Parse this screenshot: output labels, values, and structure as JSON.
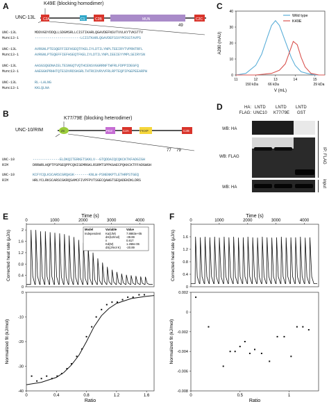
{
  "panels": {
    "A": {
      "letter": "A",
      "protein_label": "UNC-13L",
      "mutation_label": "K49E (blocking homodimer)",
      "domains": [
        "C2A",
        "C1",
        "C2B",
        "MUN",
        "C2C"
      ],
      "position_marker": "49",
      "alignment": [
        {
          "name1": "UNC-13L",
          "seq1": "MDDVGDYDDQLLSDGMSRLLCISTIKARLQGAVDEFNSVTVVLKYTVKSTTV",
          "name2": "Munc13-1",
          "seq2": "----------------------LCISTKARLQGAVDEFSSVYMIGSTAVPS"
        },
        {
          "name1": "UNC-13L",
          "seq1": "AVRGNLPTESQEFFIEFHSEQTFKELIYLDTILYNPLTEEIRYTVPRNTRFL",
          "name2": "Munc13-1",
          "seq2": "AVRGNLPTEQEFFIEFHSEQTFKELIYLDTILYNPLIEEIEYYMPLSEIRYSN"
        },
        {
          "name1": "UNC-13L",
          "seq1": "AASGSQGDNAIELTESNGQTVQTHCENSVGGRRNFTWFRLFDPPIDEGFQ",
          "name2": "Munc13-1",
          "seq2": "AAEGGKPRHHTQTESDVRDSKGRLTHTRCDVRVVFRLRPTEQPIPGEPEEARPW"
        },
        {
          "name1": "UNC-13L",
          "seq1": "RL-LALNG",
          "name2": "Munc13-1",
          "seq2": "KKLQLNA"
        }
      ]
    },
    "B": {
      "letter": "B",
      "protein_label": "UNC-10/RIM",
      "mutation_label": "K77/79E (blocking heterodimer)",
      "domains": [
        "Zn",
        "PDZ",
        "C2A",
        "FKXP",
        "C2B"
      ],
      "position_marker_1": "77",
      "position_marker_2": "79",
      "alignment": [
        {
          "name1": "UNC-10",
          "seq1": "-------------ELDKQITERKETSKKLV--GTQDDAIQCQKCKTKFADGIGH",
          "name2": "RIM",
          "seq2": "DRRWRLHQPTPSPGEQPPCQNISEMRGKLRSRMTSPPKGAECPQKKCKTFFADGWGH"
        },
        {
          "name1": "UNC-10",
          "seq1": "KCFYCQLKSCARSCGRQASK-------KNLW-PSNENKPTLETHRPSTGEQ",
          "name2": "RIM",
          "seq2": "HRLYCLRKSCARSCGKRQSAMCFIVPFPVTSGECQAWGTSEQADEKDKLDRS"
        }
      ]
    },
    "C": {
      "letter": "C",
      "ylabel": "A280 (mAU)",
      "xlabel": "V (mL)",
      "mw_labels": [
        "150 kDa",
        "66 kDa",
        "29 kDa"
      ],
      "legend": [
        "Wild type",
        "K49E"
      ]
    },
    "D": {
      "letter": "D",
      "ha_label": "HA:",
      "flag_label": "FLAG:",
      "lanes": [
        {
          "ha": "LNTD",
          "flag": "UNC10"
        },
        {
          "ha": "LNTD",
          "flag": "K77/79E"
        },
        {
          "ha": "LNTD",
          "flag": "GST"
        }
      ],
      "row_labels": [
        "WB: HA",
        "WB: FLAG",
        "WB: HA"
      ],
      "side_labels": [
        "IP: FLAG",
        "input"
      ]
    },
    "E": {
      "letter": "E",
      "top_xlabel": "Time (s)",
      "top_ylabel": "Corrected heat rate (μJ/s)",
      "bottom_ylabel": "Normalized fit (kJ/mol)",
      "bottom_xlabel": "Ratio",
      "fit_table": {
        "headers": [
          "Model",
          "Variable",
          "Value"
        ],
        "rows": [
          [
            "Independent",
            "Ka(1/M)",
            "7.8883e+05"
          ],
          [
            "",
            "dH(kJ/mol)",
            "-39.89"
          ],
          [
            "",
            "n",
            "0.817"
          ],
          [
            "",
            "Kd(M)",
            "1.268e-06"
          ],
          [
            "",
            "dS(J/mol K)",
            "-20.89"
          ]
        ]
      }
    },
    "F": {
      "letter": "F",
      "top_xlabel": "Time (s)",
      "top_ylabel": "Corrected heat rate (μJ/s)",
      "bottom_ylabel": "Normalized fit (kJ/mol)",
      "bottom_xlabel": "Ratio"
    }
  },
  "chart_data": [
    {
      "panel": "C",
      "type": "line",
      "xlabel": "V (mL)",
      "ylabel": "A280 (mAU)",
      "xlim": [
        11,
        15.5
      ],
      "ylim": [
        0,
        40
      ],
      "xticks": [
        11,
        12,
        13,
        14,
        15
      ],
      "yticks": [
        0,
        10,
        20,
        30,
        40
      ],
      "series": [
        {
          "name": "Wild type",
          "color": "#5aaed8",
          "x": [
            11.0,
            11.5,
            12.0,
            12.3,
            12.6,
            12.8,
            13.0,
            13.2,
            13.5,
            13.8,
            14.0,
            14.3,
            14.6,
            15.0,
            15.5
          ],
          "y": [
            0,
            1,
            6,
            13,
            24,
            31,
            34,
            31,
            21,
            11,
            6,
            2,
            1,
            0,
            0
          ]
        },
        {
          "name": "K49E",
          "color": "#d9534f",
          "x": [
            11.0,
            12.0,
            12.8,
            13.2,
            13.5,
            13.7,
            13.9,
            14.1,
            14.3,
            14.5,
            14.8,
            15.2,
            15.5
          ],
          "y": [
            0,
            0,
            1,
            3,
            7,
            14,
            21,
            19,
            11,
            5,
            1,
            0,
            0
          ]
        }
      ],
      "mw_markers": [
        {
          "label": "150 kDa",
          "x": 11.8
        },
        {
          "label": "66 kDa",
          "x": 12.9
        },
        {
          "label": "29 kDa",
          "x": 15.2
        }
      ]
    },
    {
      "panel": "E-top",
      "type": "line",
      "xlabel": "Time (s)",
      "ylabel": "Corrected heat rate (μJ/s)",
      "xlim": [
        0,
        4500
      ],
      "ylim": [
        0,
        2.2
      ],
      "xticks": [
        0,
        1000,
        2000,
        3000,
        4000
      ],
      "yticks": [
        0,
        0.4,
        0.8,
        1.2,
        1.6,
        2.0
      ],
      "injection_peaks": [
        2.0,
        2.0,
        1.95,
        1.95,
        1.92,
        1.9,
        1.88,
        1.85,
        1.8,
        1.75,
        1.65,
        1.55,
        1.4,
        1.2,
        1.0,
        0.85,
        0.7,
        0.6,
        0.52,
        0.46,
        0.42,
        0.4,
        0.38,
        0.36,
        0.35
      ],
      "baseline": 0.08
    },
    {
      "panel": "E-bottom",
      "type": "scatter",
      "xlabel": "Ratio",
      "ylabel": "Normalized fit (kJ/mol)",
      "xlim": [
        0,
        1.7
      ],
      "ylim": [
        -40,
        0
      ],
      "xticks": [
        0,
        0.4,
        0.8,
        1.2,
        1.6
      ],
      "yticks": [
        -40,
        -30,
        -20,
        -10,
        0
      ],
      "points": [
        {
          "x": 0.07,
          "y": -34
        },
        {
          "x": 0.14,
          "y": -36
        },
        {
          "x": 0.2,
          "y": -35
        },
        {
          "x": 0.27,
          "y": -34
        },
        {
          "x": 0.34,
          "y": -35
        },
        {
          "x": 0.41,
          "y": -34
        },
        {
          "x": 0.47,
          "y": -33
        },
        {
          "x": 0.54,
          "y": -31
        },
        {
          "x": 0.6,
          "y": -29
        },
        {
          "x": 0.67,
          "y": -26
        },
        {
          "x": 0.74,
          "y": -23
        },
        {
          "x": 0.8,
          "y": -18
        },
        {
          "x": 0.87,
          "y": -14
        },
        {
          "x": 0.93,
          "y": -10
        },
        {
          "x": 1.0,
          "y": -7
        },
        {
          "x": 1.07,
          "y": -5
        },
        {
          "x": 1.14,
          "y": -4
        },
        {
          "x": 1.21,
          "y": -4
        },
        {
          "x": 1.28,
          "y": -3
        },
        {
          "x": 1.35,
          "y": -2
        },
        {
          "x": 1.42,
          "y": -2
        },
        {
          "x": 1.5,
          "y": -1
        },
        {
          "x": 1.57,
          "y": -1
        }
      ],
      "fit": {
        "x": [
          0.0,
          0.2,
          0.4,
          0.5,
          0.6,
          0.7,
          0.8,
          0.9,
          1.0,
          1.1,
          1.2,
          1.4,
          1.6,
          1.7
        ],
        "y": [
          -37.5,
          -36.5,
          -34.5,
          -32.5,
          -29.5,
          -25.5,
          -20,
          -14,
          -9.5,
          -6.5,
          -4.5,
          -2.5,
          -1.6,
          -1.3
        ]
      }
    },
    {
      "panel": "F-top",
      "type": "line",
      "xlabel": "Time (s)",
      "ylabel": "Corrected heat rate (μJ/s)",
      "xlim": [
        0,
        4500
      ],
      "ylim": [
        0,
        2.0
      ],
      "xticks": [
        0,
        1000,
        2000,
        3000,
        4000
      ],
      "yticks": [
        0,
        0.4,
        0.8,
        1.2,
        1.6
      ],
      "injection_peaks": [
        1.6,
        1.58,
        1.6,
        1.58,
        1.6,
        1.57,
        1.6,
        1.58,
        1.6,
        1.57,
        1.58,
        1.6,
        1.58,
        1.57,
        1.6,
        1.58,
        1.57,
        1.58,
        1.6,
        1.57,
        1.58,
        1.58,
        1.6,
        1.57,
        1.58
      ],
      "baseline": 0.1
    },
    {
      "panel": "F-bottom",
      "type": "scatter",
      "xlabel": "Ratio",
      "ylabel": "Normalized fit (kJ/mol)",
      "xlim": [
        0,
        1.3
      ],
      "ylim": [
        -0.008,
        0.002
      ],
      "xticks": [
        0,
        0.5,
        1.0
      ],
      "yticks": [
        -0.008,
        -0.006,
        -0.004,
        -0.002,
        0,
        0.002
      ],
      "points": [
        {
          "x": 0.05,
          "y": 0.0015
        },
        {
          "x": 0.18,
          "y": -0.0015
        },
        {
          "x": 0.33,
          "y": -0.0055
        },
        {
          "x": 0.4,
          "y": -0.004
        },
        {
          "x": 0.45,
          "y": -0.004
        },
        {
          "x": 0.5,
          "y": -0.0035
        },
        {
          "x": 0.55,
          "y": -0.003
        },
        {
          "x": 0.6,
          "y": -0.0042
        },
        {
          "x": 0.65,
          "y": -0.0038
        },
        {
          "x": 0.72,
          "y": -0.0042
        },
        {
          "x": 0.8,
          "y": -0.005
        },
        {
          "x": 0.88,
          "y": -0.0025
        },
        {
          "x": 0.95,
          "y": -0.0025
        },
        {
          "x": 1.02,
          "y": -0.0045
        },
        {
          "x": 1.08,
          "y": -0.0015
        },
        {
          "x": 1.14,
          "y": -0.0015
        },
        {
          "x": 1.2,
          "y": -0.0018
        }
      ]
    }
  ]
}
